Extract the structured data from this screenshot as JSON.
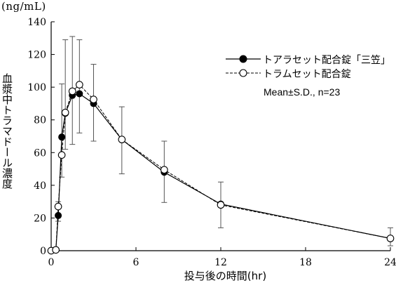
{
  "chart_data": {
    "type": "line",
    "unit_label": "(ng/mL)",
    "ylabel": "血漿中トラマドール濃度",
    "xlabel": "投与後の時間(hr)",
    "xlim": [
      0,
      24
    ],
    "ylim": [
      0,
      140
    ],
    "xticks": [
      0,
      6,
      12,
      18,
      24
    ],
    "yticks": [
      0,
      20,
      40,
      60,
      80,
      100,
      120,
      140
    ],
    "note": "Mean±S.D., n=23",
    "legend_position": "top-right",
    "series": [
      {
        "name": "トアラセット配合錠「三笠」",
        "marker": "filled-circle",
        "line": "solid",
        "x": [
          0,
          0.33,
          0.5,
          0.75,
          1,
          1.5,
          2,
          3,
          5,
          8,
          12,
          24
        ],
        "y": [
          0,
          0.5,
          21.5,
          69.5,
          84,
          95,
          96,
          90,
          68,
          48,
          28.5,
          7.5
        ]
      },
      {
        "name": "トラムセット配合錠",
        "marker": "open-circle",
        "line": "dashed",
        "x": [
          0,
          0.33,
          0.5,
          0.75,
          1,
          1.5,
          2,
          3,
          5,
          8,
          12,
          24
        ],
        "y": [
          0,
          0.5,
          27,
          58.5,
          84.5,
          97.5,
          101.5,
          92.5,
          68,
          49.5,
          28,
          7.5
        ]
      }
    ],
    "error_bars": {
      "x": [
        0.5,
        0.75,
        1,
        1.5,
        2,
        3,
        5,
        8,
        12,
        24
      ],
      "lower": [
        18,
        45,
        62,
        65,
        72,
        67,
        47,
        29.5,
        14,
        3
      ],
      "upper": [
        30,
        102,
        129,
        131,
        129,
        114,
        88,
        67,
        42,
        14
      ]
    }
  }
}
